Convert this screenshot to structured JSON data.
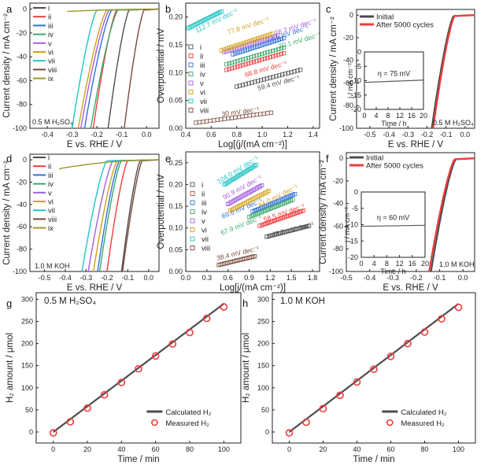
{
  "figure_title": "HER electrocatalysis multi-panel figure",
  "chart_data": [
    {
      "panel": "a",
      "type": "line",
      "title": "",
      "xlabel": "E vs. RHE / V",
      "ylabel": "Current density / mA cm⁻²",
      "xlim": [
        -0.47,
        0.05
      ],
      "ylim": [
        -100,
        5
      ],
      "xticks": [
        -0.4,
        -0.3,
        -0.2,
        -0.1,
        0.0
      ],
      "xtick_labels": [
        "-0.4",
        "-0.3",
        "-0.2",
        "-0.1",
        "0.0"
      ],
      "yticks": [
        0,
        -20,
        -40,
        -60,
        -80,
        -100
      ],
      "ytick_labels": [
        "0",
        "-20",
        "-40",
        "-60",
        "-80",
        "-100"
      ],
      "annotation": "0.5 M H₂SO₄",
      "legend_position": "top-left",
      "series": [
        {
          "name": "i",
          "color": "#4d4d4d",
          "onset": -0.07,
          "e_at_100": -0.155
        },
        {
          "name": "ii",
          "color": "#f03c3c",
          "onset": -0.12,
          "e_at_100": -0.215
        },
        {
          "name": "iii",
          "color": "#2f6fd8",
          "onset": -0.14,
          "e_at_100": -0.25
        },
        {
          "name": "iv",
          "color": "#3aa86b",
          "onset": -0.115,
          "e_at_100": -0.225
        },
        {
          "name": "v",
          "color": "#a45ee0",
          "onset": -0.15,
          "e_at_100": -0.265
        },
        {
          "name": "vi",
          "color": "#d4a017",
          "onset": -0.16,
          "e_at_100": -0.275
        },
        {
          "name": "vii",
          "color": "#22c4c4",
          "onset": -0.2,
          "e_at_100": -0.3
        },
        {
          "name": "viii",
          "color": "#7a4a3a",
          "onset": -0.01,
          "e_at_100": -0.09
        },
        {
          "name": "ix",
          "color": "#9a9a2a",
          "flat": true,
          "x": [
            -0.32,
            0.05
          ],
          "y": [
            -2,
            0
          ]
        }
      ]
    },
    {
      "panel": "b",
      "type": "scatter",
      "title": "",
      "xlabel": "Log[(j/(mA cm⁻²)]",
      "ylabel": "Overpotential / mV",
      "xlim": [
        0.4,
        1.45
      ],
      "ylim": [
        0.0,
        0.225
      ],
      "xticks": [
        0.4,
        0.6,
        0.8,
        1.0,
        1.2,
        1.4
      ],
      "xtick_labels": [
        "0.4",
        "0.6",
        "0.8",
        "1.0",
        "1.2",
        "1.4"
      ],
      "yticks": [
        0.0,
        0.05,
        0.1,
        0.15,
        0.2
      ],
      "ytick_labels": [
        "0.00",
        "0.05",
        "0.10",
        "0.15",
        "0.20"
      ],
      "legend_position": "left",
      "series": [
        {
          "name": "i",
          "color": "#4d4d4d",
          "x": [
            0.8,
            1.3
          ],
          "y": [
            0.075,
            0.105
          ],
          "label": "59.4 mV dec⁻¹"
        },
        {
          "name": "ii",
          "color": "#f03c3c",
          "x": [
            0.72,
            1.17
          ],
          "y": [
            0.105,
            0.135
          ],
          "label": "68.8 mV dec⁻¹"
        },
        {
          "name": "iii",
          "color": "#2f6fd8",
          "x": [
            0.77,
            1.17
          ],
          "y": [
            0.133,
            0.162
          ],
          "label": "74.5 mV dec⁻¹"
        },
        {
          "name": "iv",
          "color": "#3aa86b",
          "x": [
            0.72,
            1.17
          ],
          "y": [
            0.115,
            0.145
          ],
          "label": "70.1 mV dec⁻¹"
        },
        {
          "name": "v",
          "color": "#a45ee0",
          "x": [
            0.7,
            1.12
          ],
          "y": [
            0.137,
            0.167
          ],
          "label": "76.2 mV dec⁻¹"
        },
        {
          "name": "vi",
          "color": "#d4a017",
          "x": [
            0.68,
            1.08
          ],
          "y": [
            0.14,
            0.17
          ],
          "label": "77.8 mV dec⁻¹"
        },
        {
          "name": "vii",
          "color": "#22c4c4",
          "x": [
            0.42,
            0.68
          ],
          "y": [
            0.18,
            0.21
          ],
          "label": "112.7 mV dec⁻¹"
        },
        {
          "name": "viii",
          "color": "#7a4a3a",
          "x": [
            0.48,
            1.07
          ],
          "y": [
            0.01,
            0.028
          ],
          "label": "30 mV dec⁻¹"
        }
      ]
    },
    {
      "panel": "c",
      "type": "line",
      "xlabel": "E vs. RHE / V",
      "ylabel": "Current density / mA cm⁻²",
      "xlim": [
        -0.57,
        0.05
      ],
      "ylim": [
        -100,
        5
      ],
      "xticks": [
        -0.5,
        -0.4,
        -0.3,
        -0.2,
        -0.1,
        0.0
      ],
      "xtick_labels": [
        "-0.5",
        "-0.4",
        "-0.3",
        "-0.2",
        "-0.1",
        "0.0"
      ],
      "yticks": [
        0,
        -20,
        -40,
        -60,
        -80,
        -100
      ],
      "ytick_labels": [
        "0",
        "-20",
        "-40",
        "-60",
        "-80",
        "-100"
      ],
      "annotation": "0.5 M H₂SO₄",
      "legend_position": "top-left",
      "series": [
        {
          "name": "Initial",
          "color": "#4d4d4d",
          "onset": -0.06,
          "e_at_100": -0.175
        },
        {
          "name": "After 5000 cycles",
          "color": "#f03c3c",
          "onset": -0.055,
          "e_at_100": -0.168
        }
      ],
      "inset": {
        "type": "line",
        "xlabel": "Time / h",
        "ylabel": "j / mA cm⁻²",
        "xlim": [
          0,
          20
        ],
        "ylim": [
          -20,
          0
        ],
        "xticks": [
          0,
          4,
          8,
          12,
          16,
          20
        ],
        "xtick_labels": [
          "0",
          "4",
          "8",
          "12",
          "16",
          "20"
        ],
        "yticks": [
          0,
          -5,
          -10,
          -15,
          -20
        ],
        "ytick_labels": [
          "0",
          "-5",
          "-10",
          "-15",
          "-20"
        ],
        "annotation": "η = 75 mV",
        "x": [
          0,
          20
        ],
        "y": [
          -10.6,
          -9.8
        ]
      }
    },
    {
      "panel": "d",
      "type": "line",
      "xlabel": "E vs. RHE / V",
      "ylabel": "Current density / mA cm⁻²",
      "xlim": [
        -0.57,
        0.05
      ],
      "ylim": [
        -100,
        5
      ],
      "xticks": [
        -0.5,
        -0.4,
        -0.3,
        -0.2,
        -0.1,
        0.0
      ],
      "xtick_labels": [
        "-0.5",
        "-0.4",
        "-0.3",
        "-0.2",
        "-0.1",
        "0.0"
      ],
      "yticks": [
        0,
        -20,
        -40,
        -60,
        -80,
        -100
      ],
      "ytick_labels": [
        "0",
        "-20",
        "-40",
        "-60",
        "-80",
        "-100"
      ],
      "annotation": "1.0 M KOH",
      "legend_position": "top-left",
      "series": [
        {
          "name": "i",
          "color": "#4d4d4d",
          "onset": -0.04,
          "e_at_100": -0.13
        },
        {
          "name": "ii",
          "color": "#f03c3c",
          "onset": -0.1,
          "e_at_100": -0.2
        },
        {
          "name": "iii",
          "color": "#2f6fd8",
          "onset": -0.14,
          "e_at_100": -0.245
        },
        {
          "name": "iv",
          "color": "#3aa86b",
          "onset": -0.13,
          "e_at_100": -0.235
        },
        {
          "name": "v",
          "color": "#a45ee0",
          "onset": -0.17,
          "e_at_100": -0.29
        },
        {
          "name": "vi",
          "color": "#d4a017",
          "onset": -0.15,
          "e_at_100": -0.265
        },
        {
          "name": "vii",
          "color": "#22c4c4",
          "onset": -0.2,
          "e_at_100": -0.32
        },
        {
          "name": "viii",
          "color": "#7a4a3a",
          "onset": -0.03,
          "e_at_100": -0.125
        },
        {
          "name": "ix",
          "color": "#9a9a2a",
          "flat": true,
          "x": [
            -0.43,
            0.05
          ],
          "y": [
            -8,
            0
          ]
        }
      ]
    },
    {
      "panel": "e",
      "type": "scatter",
      "xlabel": "Log[j/(mA cm⁻²)]",
      "ylabel": "Overpotential / mV",
      "xlim": [
        0.0,
        1.9
      ],
      "ylim": [
        0.0,
        0.275
      ],
      "xticks": [
        0.0,
        0.3,
        0.6,
        0.9,
        1.2,
        1.5,
        1.8
      ],
      "xtick_labels": [
        "0.0",
        "0.3",
        "0.6",
        "0.9",
        "1.2",
        "1.5",
        "1.8"
      ],
      "yticks": [
        0.0,
        0.05,
        0.1,
        0.15,
        0.2,
        0.25
      ],
      "ytick_labels": [
        "0.00",
        "0.05",
        "0.10",
        "0.15",
        "0.20",
        "0.25"
      ],
      "legend_position": "left",
      "series": [
        {
          "name": "i",
          "color": "#4d4d4d",
          "x": [
            1.15,
            1.75
          ],
          "y": [
            0.08,
            0.105
          ],
          "label": "43.2 mV dec⁻¹"
        },
        {
          "name": "ii",
          "color": "#f03c3c",
          "x": [
            1.05,
            1.67
          ],
          "y": [
            0.105,
            0.14
          ],
          "label": "58.5 mV dec⁻¹"
        },
        {
          "name": "iii",
          "color": "#2f6fd8",
          "x": [
            0.95,
            1.55
          ],
          "y": [
            0.138,
            0.178
          ],
          "label": "69.6 mV dec⁻¹"
        },
        {
          "name": "iv",
          "color": "#3aa86b",
          "x": [
            0.9,
            1.52
          ],
          "y": [
            0.125,
            0.165
          ],
          "label": "67.9 mV dec⁻¹"
        },
        {
          "name": "v",
          "color": "#a45ee0",
          "x": [
            0.6,
            1.08
          ],
          "y": [
            0.155,
            0.198
          ],
          "label": "90.9 mV dec⁻¹"
        },
        {
          "name": "vi",
          "color": "#d4a017",
          "x": [
            0.63,
            1.18
          ],
          "y": [
            0.14,
            0.185
          ],
          "label": "84.0 mV dec⁻¹"
        },
        {
          "name": "vii",
          "color": "#22c4c4",
          "x": [
            0.55,
            1.0
          ],
          "y": [
            0.2,
            0.245
          ],
          "label": "104.0 mV dec⁻¹"
        },
        {
          "name": "viii",
          "color": "#7a4a3a",
          "x": [
            0.47,
            0.98
          ],
          "y": [
            0.015,
            0.035
          ],
          "label": "38.4 mV dec⁻¹"
        }
      ]
    },
    {
      "panel": "f",
      "type": "line",
      "xlabel": "E vs. RHE / V",
      "ylabel": "Current density / mA cm⁻²",
      "xlim": [
        -0.5,
        0.05
      ],
      "ylim": [
        -100,
        5
      ],
      "xticks": [
        -0.5,
        -0.4,
        -0.3,
        -0.2,
        -0.1,
        0.0
      ],
      "xtick_labels": [
        "-0.5",
        "-0.4",
        "-0.3",
        "-0.2",
        "-0.1",
        "0.0"
      ],
      "yticks": [
        0,
        -20,
        -40,
        -60,
        -80,
        -100
      ],
      "ytick_labels": [
        "0",
        "-20",
        "-40",
        "-60",
        "-80",
        "-100"
      ],
      "annotation": "1.0 M KOH",
      "legend_position": "top-left",
      "series": [
        {
          "name": "Initial",
          "color": "#4d4d4d",
          "onset": -0.03,
          "e_at_100": -0.137
        },
        {
          "name": "After 5000 cycles",
          "color": "#f03c3c",
          "onset": -0.035,
          "e_at_100": -0.145
        }
      ],
      "inset": {
        "type": "line",
        "xlabel": "Time / h",
        "ylabel": "j / mA cm⁻²",
        "xlim": [
          0,
          20
        ],
        "ylim": [
          -20,
          0
        ],
        "xticks": [
          0,
          4,
          8,
          12,
          16,
          20
        ],
        "xtick_labels": [
          "0",
          "4",
          "8",
          "12",
          "16",
          "20"
        ],
        "yticks": [
          0,
          -5,
          -10,
          -15,
          -20
        ],
        "ytick_labels": [
          "0",
          "-5",
          "-10",
          "-15",
          "-20"
        ],
        "annotation": "η = 60 mV",
        "x": [
          0,
          20
        ],
        "y": [
          -10.5,
          -10.2
        ]
      }
    },
    {
      "panel": "g",
      "type": "line",
      "xlabel": "Time / min",
      "ylabel": "H₂ amount / μmol",
      "xlim": [
        -10,
        110
      ],
      "ylim": [
        -25,
        315
      ],
      "xticks": [
        0,
        20,
        40,
        60,
        80,
        100
      ],
      "xtick_labels": [
        "0",
        "20",
        "40",
        "60",
        "80",
        "100"
      ],
      "yticks": [
        0,
        50,
        100,
        150,
        200,
        250,
        300
      ],
      "ytick_labels": [
        "0",
        "50",
        "100",
        "150",
        "200",
        "250",
        "300"
      ],
      "annotation": "0.5 M H₂SO₄",
      "legend_position": "bottom-right",
      "series": [
        {
          "name": "Calculated H₂",
          "color": "#4d4d4d",
          "x": [
            0,
            100
          ],
          "y": [
            0,
            290
          ]
        },
        {
          "name": "Measured H₂",
          "color": "#f03c3c",
          "marker": "circle",
          "x": [
            0,
            10,
            20,
            30,
            40,
            50,
            60,
            70,
            80,
            90,
            100
          ],
          "y": [
            -2,
            23,
            54,
            84,
            112,
            143,
            172,
            199,
            225,
            257,
            283
          ]
        }
      ]
    },
    {
      "panel": "h",
      "type": "line",
      "xlabel": "Time / min",
      "ylabel": "H₂ amount / μmol",
      "xlim": [
        -10,
        110
      ],
      "ylim": [
        -25,
        315
      ],
      "xticks": [
        0,
        20,
        40,
        60,
        80,
        100
      ],
      "xtick_labels": [
        "0",
        "20",
        "40",
        "60",
        "80",
        "100"
      ],
      "yticks": [
        0,
        50,
        100,
        150,
        200,
        250,
        300
      ],
      "ytick_labels": [
        "0",
        "50",
        "100",
        "150",
        "200",
        "250",
        "300"
      ],
      "annotation": "1.0 M KOH",
      "legend_position": "bottom-right",
      "series": [
        {
          "name": "Calculated H₂",
          "color": "#4d4d4d",
          "x": [
            0,
            100
          ],
          "y": [
            0,
            290
          ]
        },
        {
          "name": "Measured H₂",
          "color": "#f03c3c",
          "marker": "circle",
          "x": [
            0,
            10,
            20,
            30,
            40,
            50,
            60,
            70,
            80,
            90,
            100
          ],
          "y": [
            -2,
            22,
            53,
            83,
            113,
            142,
            171,
            200,
            226,
            256,
            282
          ]
        }
      ]
    }
  ]
}
